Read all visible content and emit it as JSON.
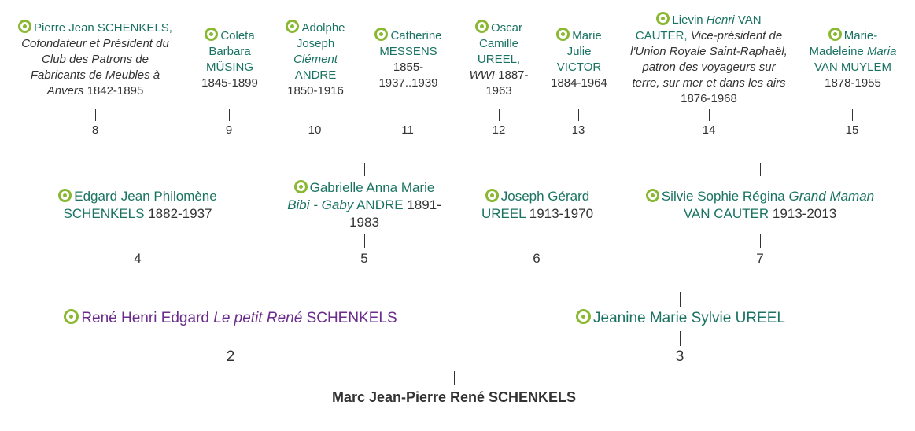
{
  "tree": {
    "root": {
      "name": "Marc Jean-Pierre René SCHENKELS"
    },
    "numbers": {
      "n2": "2",
      "n3": "3",
      "n4": "4",
      "n5": "5",
      "n6": "6",
      "n7": "7",
      "n8": "8",
      "n9": "9",
      "n10": "10",
      "n11": "11",
      "n12": "12",
      "n13": "13",
      "n14": "14",
      "n15": "15"
    },
    "p2": {
      "given": "René Henri Edgard",
      "nick": "Le petit René",
      "surname": "SCHENKELS"
    },
    "p3": {
      "name": "Jeanine Marie Sylvie UREEL"
    },
    "p4": {
      "name_line1": "Edgard Jean Philomène",
      "surname": "SCHENKELS",
      "years": "1882-1937"
    },
    "p5": {
      "given": "Gabrielle Anna Marie",
      "nick": "Bibi - Gaby",
      "surname": "ANDRE",
      "years_a": "1891-",
      "years_b": "1983"
    },
    "p6": {
      "given": "Joseph Gérard",
      "surname": "UREEL",
      "years": "1913-1970"
    },
    "p7": {
      "given": "Silvie Sophie Régina",
      "nick": "Grand Maman",
      "surname": "VAN CAUTER",
      "years": "1913-2013"
    },
    "p8": {
      "name": "Pierre Jean SCHENKELS,",
      "desc1": "Cofondateur et Président du",
      "desc2": "Club des Patrons de",
      "desc3": "Fabricants de Meubles à",
      "desc4": "Anvers",
      "years": "1842-1895"
    },
    "p9": {
      "given1": "Coleta",
      "given2": "Barbara",
      "surname": "MÜSING",
      "years": "1845-1899"
    },
    "p10": {
      "given1": "Adolphe",
      "given2": "Joseph",
      "nick": "Clément",
      "surname": "ANDRE",
      "years": "1850-1916"
    },
    "p11": {
      "given": "Catherine",
      "surname": "MESSENS",
      "years_a": "1855-",
      "years_b": "1937..1939"
    },
    "p12": {
      "given1": "Oscar",
      "given2": "Camille",
      "surname": "UREEL,",
      "desc": "WWI",
      "years_a": "1887-",
      "years_b": "1963"
    },
    "p13": {
      "given1": "Marie",
      "given2": "Julie",
      "surname": "VICTOR",
      "years": "1884-1964"
    },
    "p14": {
      "given": "Lievin",
      "nick": "Henri",
      "surname": "VAN",
      "surname2": "CAUTER,",
      "desc1": "Vice-président de",
      "desc2": "l'Union Royale Saint-Raphaël,",
      "desc3": "patron des voyageurs sur",
      "desc4": "terre, sur mer et dans les airs",
      "years": "1876-1968"
    },
    "p15": {
      "given1": "Marie-",
      "given2": "Madeleine",
      "nick": "Maria",
      "surname": "VAN MUYLEM",
      "years": "1878-1955"
    }
  }
}
